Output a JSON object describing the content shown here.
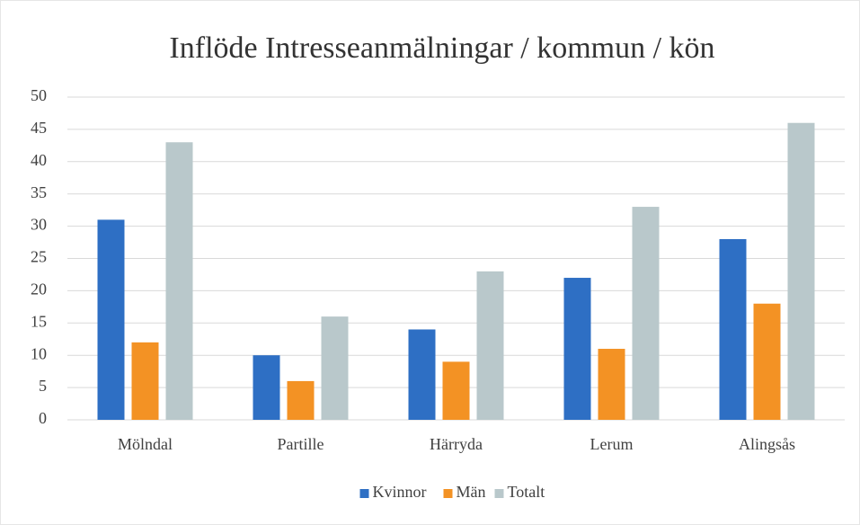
{
  "chart_data": {
    "type": "bar",
    "title": "Inflöde Intresseanmälningar / kommun / kön",
    "categories": [
      "Mölndal",
      "Partille",
      "Härryda",
      "Lerum",
      "Alingsås"
    ],
    "series": [
      {
        "name": "Kvinnor",
        "color": "#2e6fc4",
        "values": [
          31,
          10,
          14,
          22,
          28
        ]
      },
      {
        "name": "Män",
        "color": "#f39224",
        "values": [
          12,
          6,
          9,
          11,
          18
        ]
      },
      {
        "name": "Totalt",
        "color": "#b9c8cb",
        "values": [
          43,
          16,
          23,
          33,
          46
        ]
      }
    ],
    "ylim": [
      0,
      50
    ],
    "yticks": [
      0,
      5,
      10,
      15,
      20,
      25,
      30,
      35,
      40,
      45,
      50
    ],
    "grid": true,
    "legend": "bottom"
  }
}
